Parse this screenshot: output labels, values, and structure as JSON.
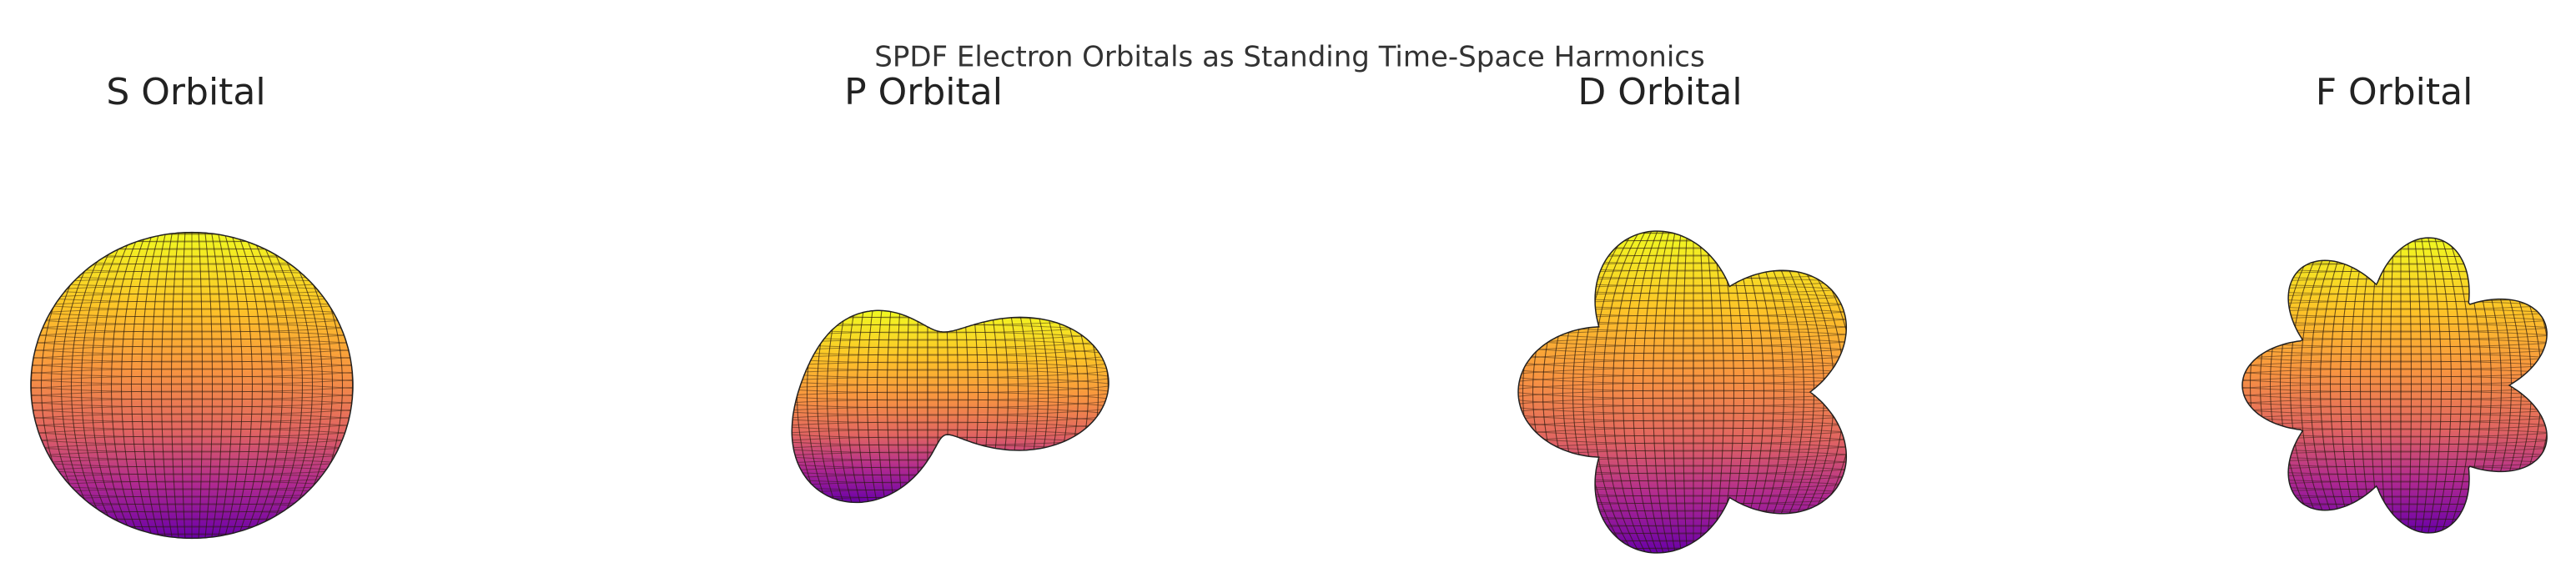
{
  "title": "SPDF Electron Orbitals as Standing Time-Space Harmonics",
  "chart_data": [
    {
      "type": "surface3d",
      "title": "S Orbital"
    },
    {
      "type": "surface3d",
      "title": "P Orbital"
    },
    {
      "type": "surface3d",
      "title": "D Orbital"
    },
    {
      "type": "surface3d",
      "title": "F Orbital"
    }
  ]
}
